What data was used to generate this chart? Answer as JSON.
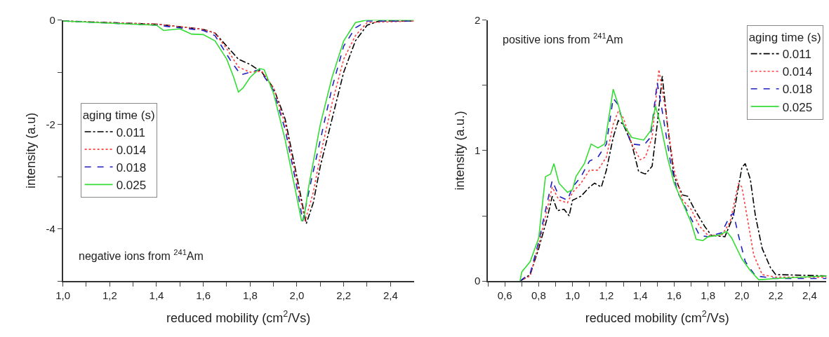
{
  "chart_data": [
    {
      "type": "line",
      "xlabel": "reduced mobility (cm$^{2}$/Vs)",
      "ylabel": "intensity (a.u)",
      "legend_title": "aging time (s)",
      "legend": "left",
      "grid": false,
      "annotations": [
        "negative ions from $^{241}$Am"
      ],
      "xlim": [
        1.0,
        2.5
      ],
      "ylim": [
        -5,
        0
      ],
      "xticks": [
        {
          "value": 1.0,
          "label": "1,0"
        },
        {
          "value": 1.1,
          "label": null
        },
        {
          "value": 1.2,
          "label": "1,2"
        },
        {
          "value": 1.3,
          "label": null
        },
        {
          "value": 1.4,
          "label": "1,4"
        },
        {
          "value": 1.5,
          "label": null
        },
        {
          "value": 1.6,
          "label": "1,6"
        },
        {
          "value": 1.7,
          "label": null
        },
        {
          "value": 1.8,
          "label": "1,8"
        },
        {
          "value": 1.9,
          "label": null
        },
        {
          "value": 2.0,
          "label": "2,0"
        },
        {
          "value": 2.1,
          "label": null
        },
        {
          "value": 2.2,
          "label": "2,2"
        },
        {
          "value": 2.3,
          "label": null
        },
        {
          "value": 2.4,
          "label": "2,4"
        }
      ],
      "yticks": [
        {
          "value": -5,
          "label": null
        },
        -4,
        {
          "value": -3,
          "label": null
        },
        -2,
        {
          "value": -1,
          "label": null
        },
        0
      ],
      "series": [
        {
          "name": "0.011",
          "color": "#000000",
          "line_style": "dashdot",
          "x": [
            1.0,
            1.4,
            1.6,
            1.65,
            1.7,
            1.75,
            1.8,
            1.85,
            1.9,
            1.95,
            2.0,
            2.04,
            2.07,
            2.1,
            2.15,
            2.2,
            2.25,
            2.3,
            2.35,
            2.5
          ],
          "values": [
            -0.02,
            -0.08,
            -0.18,
            -0.25,
            -0.5,
            -0.75,
            -0.85,
            -1.0,
            -1.3,
            -1.9,
            -3.0,
            -3.9,
            -3.5,
            -2.8,
            -1.9,
            -1.0,
            -0.4,
            -0.1,
            -0.02,
            -0.02
          ]
        },
        {
          "name": "0.014",
          "color": "#ff4040",
          "line_style": "dotted",
          "x": [
            1.0,
            1.4,
            1.6,
            1.65,
            1.7,
            1.75,
            1.8,
            1.85,
            1.9,
            1.95,
            2.0,
            2.035,
            2.07,
            2.1,
            2.15,
            2.2,
            2.25,
            2.3,
            2.5
          ],
          "values": [
            -0.02,
            -0.08,
            -0.18,
            -0.25,
            -0.55,
            -0.9,
            -1.0,
            -0.98,
            -1.3,
            -2.0,
            -3.1,
            -3.85,
            -3.3,
            -2.6,
            -1.6,
            -0.75,
            -0.3,
            -0.05,
            -0.02
          ]
        },
        {
          "name": "0.018",
          "color": "#2020c0",
          "line_style": "dashed",
          "x": [
            1.0,
            1.4,
            1.6,
            1.65,
            1.72,
            1.76,
            1.8,
            1.84,
            1.9,
            1.95,
            2.0,
            2.025,
            2.06,
            2.1,
            2.15,
            2.2,
            2.25,
            2.3,
            2.5
          ],
          "values": [
            -0.02,
            -0.1,
            -0.2,
            -0.3,
            -0.8,
            -1.05,
            -1.0,
            -0.95,
            -1.35,
            -2.1,
            -3.2,
            -3.85,
            -3.1,
            -2.3,
            -1.3,
            -0.5,
            -0.15,
            -0.02,
            -0.02
          ]
        },
        {
          "name": "0.025",
          "color": "#33dd33",
          "line_style": "solid",
          "x": [
            1.0,
            1.2,
            1.4,
            1.43,
            1.5,
            1.55,
            1.6,
            1.65,
            1.7,
            1.73,
            1.75,
            1.77,
            1.8,
            1.84,
            1.86,
            1.9,
            1.95,
            2.0,
            2.02,
            2.03,
            2.05,
            2.1,
            2.15,
            2.2,
            2.25,
            2.3,
            2.5
          ],
          "values": [
            -0.02,
            -0.06,
            -0.1,
            -0.2,
            -0.17,
            -0.27,
            -0.28,
            -0.4,
            -0.75,
            -1.1,
            -1.38,
            -1.3,
            -1.1,
            -0.93,
            -0.95,
            -1.4,
            -2.3,
            -3.4,
            -3.85,
            -3.8,
            -3.2,
            -2.0,
            -1.1,
            -0.4,
            -0.05,
            0,
            0
          ]
        }
      ]
    },
    {
      "type": "line",
      "xlabel": "reduced mobility (cm$^{2}$/Vs)",
      "ylabel": "intensity (a.u.)",
      "legend_title": "aging time (s)",
      "legend": "top right",
      "grid": false,
      "annotations": [
        "positive ions from $^{241}$Am"
      ],
      "xlim": [
        0.5,
        2.5
      ],
      "ylim": [
        0,
        2
      ],
      "xticks": [
        {
          "value": 0.5,
          "label": null
        },
        {
          "value": 0.6,
          "label": "0,6"
        },
        {
          "value": 0.7,
          "label": null
        },
        {
          "value": 0.8,
          "label": "0,8"
        },
        {
          "value": 0.9,
          "label": null
        },
        {
          "value": 1.0,
          "label": "1,0"
        },
        {
          "value": 1.1,
          "label": null
        },
        {
          "value": 1.2,
          "label": "1,2"
        },
        {
          "value": 1.3,
          "label": null
        },
        {
          "value": 1.4,
          "label": "1,4"
        },
        {
          "value": 1.5,
          "label": null
        },
        {
          "value": 1.6,
          "label": "1,6"
        },
        {
          "value": 1.7,
          "label": null
        },
        {
          "value": 1.8,
          "label": "1,8"
        },
        {
          "value": 1.9,
          "label": null
        },
        {
          "value": 2.0,
          "label": "2,0"
        },
        {
          "value": 2.1,
          "label": null
        },
        {
          "value": 2.2,
          "label": "2,2"
        },
        {
          "value": 2.3,
          "label": null
        },
        {
          "value": 2.4,
          "label": "2,4"
        }
      ],
      "yticks": [
        0,
        {
          "value": 0.5,
          "label": null
        },
        1,
        {
          "value": 1.5,
          "label": null
        },
        2
      ],
      "series": [
        {
          "name": "0.011",
          "color": "#000000",
          "line_style": "dashdot",
          "x": [
            0.69,
            0.75,
            0.8,
            0.85,
            0.88,
            0.91,
            0.95,
            0.98,
            1.0,
            1.05,
            1.1,
            1.13,
            1.17,
            1.2,
            1.24,
            1.27,
            1.3,
            1.35,
            1.39,
            1.43,
            1.47,
            1.5,
            1.53,
            1.56,
            1.6,
            1.65,
            1.68,
            1.72,
            1.78,
            1.82,
            1.9,
            1.95,
            2.0,
            2.02,
            2.05,
            2.08,
            2.12,
            2.17,
            2.2,
            2.5
          ],
          "values": [
            0.0,
            0.05,
            0.25,
            0.48,
            0.65,
            0.54,
            0.55,
            0.5,
            0.62,
            0.65,
            0.72,
            0.75,
            0.72,
            0.85,
            1.1,
            1.23,
            1.2,
            1.05,
            0.84,
            0.82,
            0.88,
            1.2,
            1.57,
            1.2,
            0.8,
            0.66,
            0.65,
            0.55,
            0.42,
            0.35,
            0.34,
            0.5,
            0.87,
            0.9,
            0.78,
            0.5,
            0.25,
            0.1,
            0.05,
            0.04
          ]
        },
        {
          "name": "0.014",
          "color": "#ff4040",
          "line_style": "dotted",
          "x": [
            0.69,
            0.75,
            0.8,
            0.85,
            0.88,
            0.92,
            0.97,
            1.0,
            1.05,
            1.1,
            1.15,
            1.2,
            1.24,
            1.27,
            1.3,
            1.35,
            1.4,
            1.43,
            1.47,
            1.51,
            1.55,
            1.6,
            1.65,
            1.7,
            1.75,
            1.8,
            1.88,
            1.93,
            1.98,
            2.0,
            2.03,
            2.07,
            2.12,
            2.2,
            2.5
          ],
          "values": [
            0.0,
            0.04,
            0.28,
            0.55,
            0.72,
            0.62,
            0.6,
            0.68,
            0.75,
            0.85,
            0.85,
            0.95,
            1.2,
            1.3,
            1.25,
            1.05,
            0.93,
            0.95,
            1.1,
            1.62,
            1.3,
            0.85,
            0.62,
            0.55,
            0.42,
            0.35,
            0.35,
            0.45,
            0.75,
            0.72,
            0.5,
            0.2,
            0.05,
            0.03,
            0.03
          ]
        },
        {
          "name": "0.018",
          "color": "#2020c0",
          "line_style": "dashed",
          "x": [
            0.69,
            0.75,
            0.8,
            0.85,
            0.88,
            0.92,
            0.97,
            1.0,
            1.05,
            1.1,
            1.15,
            1.2,
            1.24,
            1.27,
            1.3,
            1.35,
            1.42,
            1.46,
            1.5,
            1.53,
            1.58,
            1.62,
            1.7,
            1.75,
            1.8,
            1.88,
            1.93,
            1.95,
            1.98,
            2.02,
            2.08,
            2.2,
            2.5
          ],
          "values": [
            0.0,
            0.06,
            0.3,
            0.6,
            0.77,
            0.65,
            0.62,
            0.72,
            0.8,
            0.92,
            0.95,
            1.05,
            1.4,
            1.35,
            1.2,
            1.05,
            1.04,
            1.1,
            1.52,
            1.3,
            0.9,
            0.68,
            0.48,
            0.35,
            0.34,
            0.37,
            0.5,
            0.52,
            0.35,
            0.15,
            0.04,
            0.02,
            0.02
          ]
        },
        {
          "name": "0.025",
          "color": "#33dd33",
          "line_style": "solid",
          "x": [
            0.69,
            0.7,
            0.75,
            0.8,
            0.84,
            0.87,
            0.89,
            0.92,
            0.97,
            1.0,
            1.02,
            1.07,
            1.11,
            1.15,
            1.19,
            1.22,
            1.24,
            1.27,
            1.3,
            1.35,
            1.42,
            1.46,
            1.49,
            1.52,
            1.56,
            1.6,
            1.65,
            1.7,
            1.73,
            1.77,
            1.8,
            1.86,
            1.91,
            1.94,
            2.0,
            2.05,
            2.1,
            2.2,
            2.5
          ],
          "values": [
            0.0,
            0.07,
            0.15,
            0.33,
            0.8,
            0.82,
            0.9,
            0.75,
            0.68,
            0.7,
            0.8,
            0.9,
            1.05,
            1.02,
            1.05,
            1.3,
            1.47,
            1.35,
            1.2,
            1.1,
            1.08,
            1.15,
            1.34,
            1.2,
            0.95,
            0.75,
            0.6,
            0.45,
            0.32,
            0.31,
            0.34,
            0.35,
            0.38,
            0.33,
            0.17,
            0.08,
            0.01,
            0.02,
            0.04
          ]
        }
      ]
    }
  ]
}
